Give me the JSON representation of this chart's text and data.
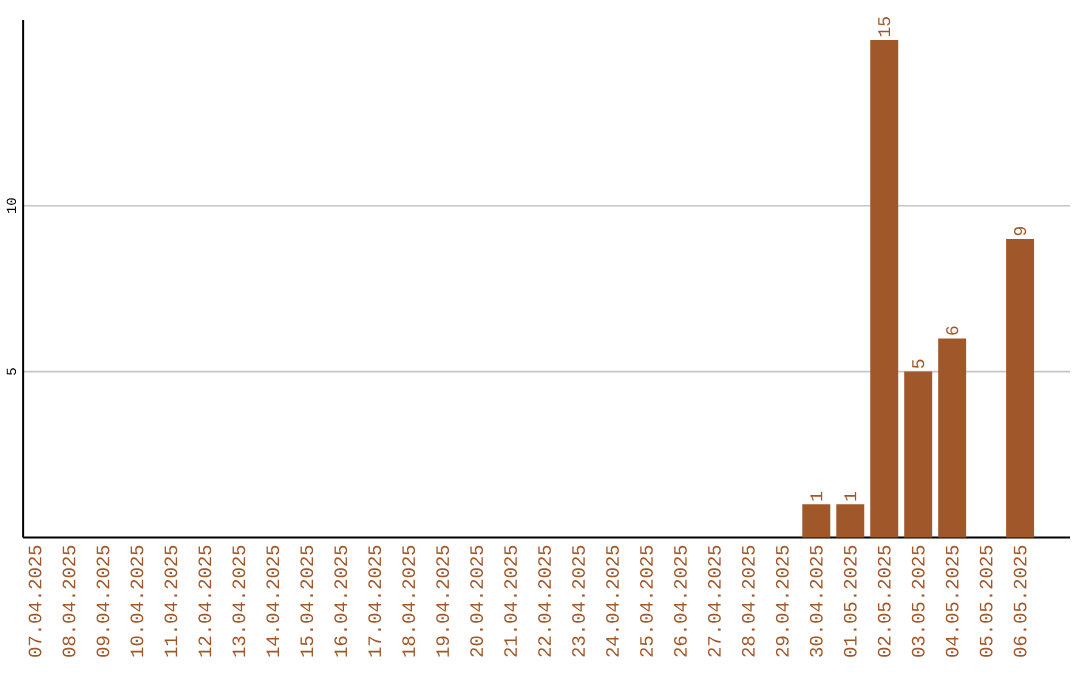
{
  "chart_data": {
    "type": "bar",
    "categories": [
      "07.04.2025",
      "08.04.2025",
      "09.04.2025",
      "10.04.2025",
      "11.04.2025",
      "12.04.2025",
      "13.04.2025",
      "14.04.2025",
      "15.04.2025",
      "16.04.2025",
      "17.04.2025",
      "18.04.2025",
      "19.04.2025",
      "20.04.2025",
      "21.04.2025",
      "22.04.2025",
      "23.04.2025",
      "24.04.2025",
      "25.04.2025",
      "26.04.2025",
      "27.04.2025",
      "28.04.2025",
      "29.04.2025",
      "30.04.2025",
      "01.05.2025",
      "02.05.2025",
      "03.05.2025",
      "04.05.2025",
      "05.05.2025",
      "06.05.2025"
    ],
    "values": [
      0,
      0,
      0,
      0,
      0,
      0,
      0,
      0,
      0,
      0,
      0,
      0,
      0,
      0,
      0,
      0,
      0,
      0,
      0,
      0,
      0,
      0,
      0,
      1,
      1,
      15,
      5,
      6,
      0,
      9
    ],
    "value_labels": [
      null,
      null,
      null,
      null,
      null,
      null,
      null,
      null,
      null,
      null,
      null,
      null,
      null,
      null,
      null,
      null,
      null,
      null,
      null,
      null,
      null,
      null,
      null,
      "1",
      "1",
      "15",
      "5",
      "6",
      null,
      "9"
    ],
    "color": "#a0582a",
    "ylim": [
      0,
      15.6
    ],
    "yticks": [
      5,
      10
    ],
    "grid": "y"
  }
}
